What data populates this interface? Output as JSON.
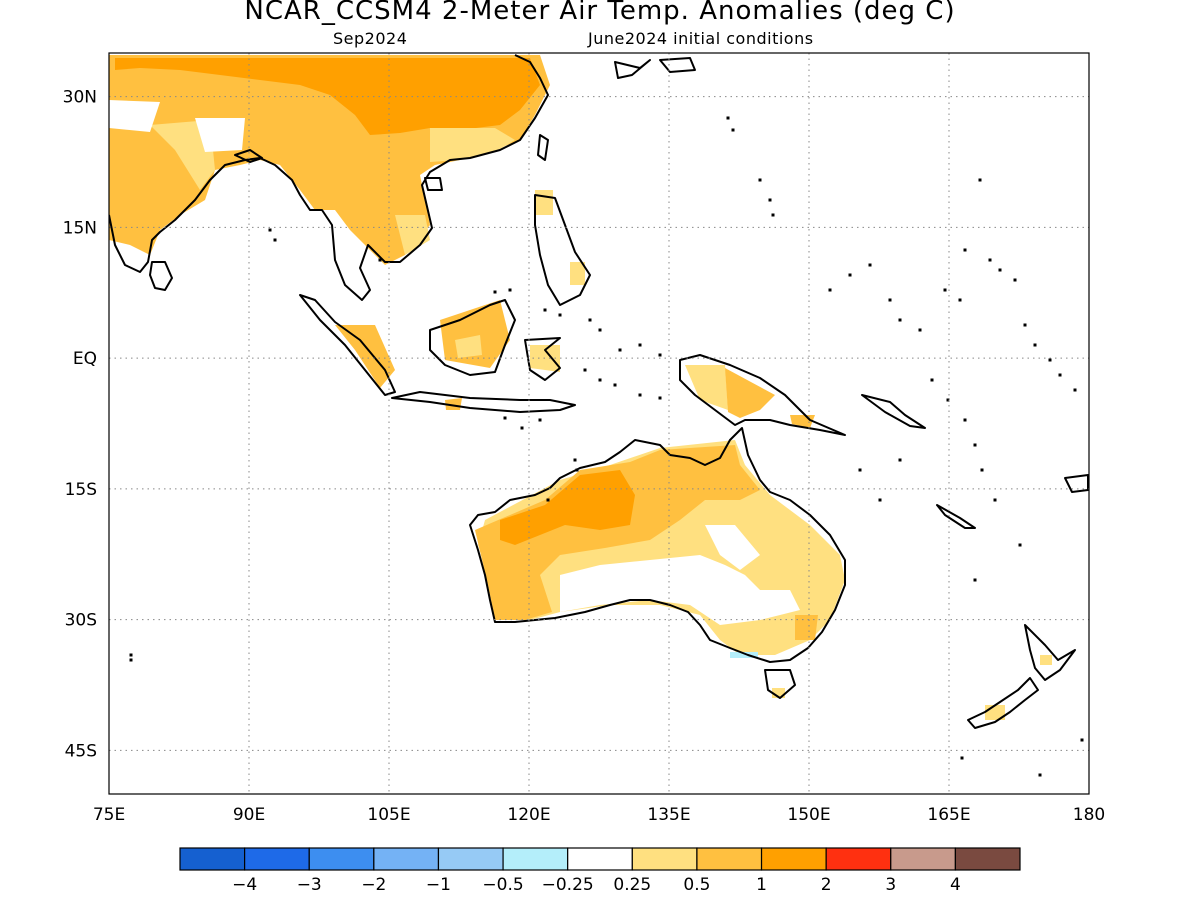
{
  "title": "NCAR_CCSM4 2-Meter Air Temp. Anomalies (deg C)",
  "subtitle_left": "Sep2024",
  "subtitle_right": "June2024 initial conditions",
  "map": {
    "lon_range": [
      75,
      180
    ],
    "lat_range": [
      -50,
      35
    ],
    "x_ticks": [
      {
        "value": 75,
        "label": "75E"
      },
      {
        "value": 90,
        "label": "90E"
      },
      {
        "value": 105,
        "label": "105E"
      },
      {
        "value": 120,
        "label": "120E"
      },
      {
        "value": 135,
        "label": "135E"
      },
      {
        "value": 150,
        "label": "150E"
      },
      {
        "value": 165,
        "label": "165E"
      },
      {
        "value": 180,
        "label": "180"
      }
    ],
    "y_ticks": [
      {
        "value": 30,
        "label": "30N"
      },
      {
        "value": 15,
        "label": "15N"
      },
      {
        "value": 0,
        "label": "EQ"
      },
      {
        "value": -15,
        "label": "15S"
      },
      {
        "value": -30,
        "label": "30S"
      },
      {
        "value": -45,
        "label": "45S"
      }
    ],
    "grid": "dotted"
  },
  "colorbar": {
    "colors": [
      "#1560d0",
      "#1e6ae8",
      "#3d8ef0",
      "#74b2f5",
      "#96caf5",
      "#b4eefa",
      "#ffffff",
      "#ffe080",
      "#ffc040",
      "#ffa000",
      "#ff3010",
      "#c89a8c",
      "#7a4a40"
    ],
    "labels": [
      "−4",
      "−3",
      "−2",
      "−1",
      "−0.5",
      "−0.25",
      "0.25",
      "0.5",
      "1",
      "2",
      "3",
      "4"
    ]
  }
}
